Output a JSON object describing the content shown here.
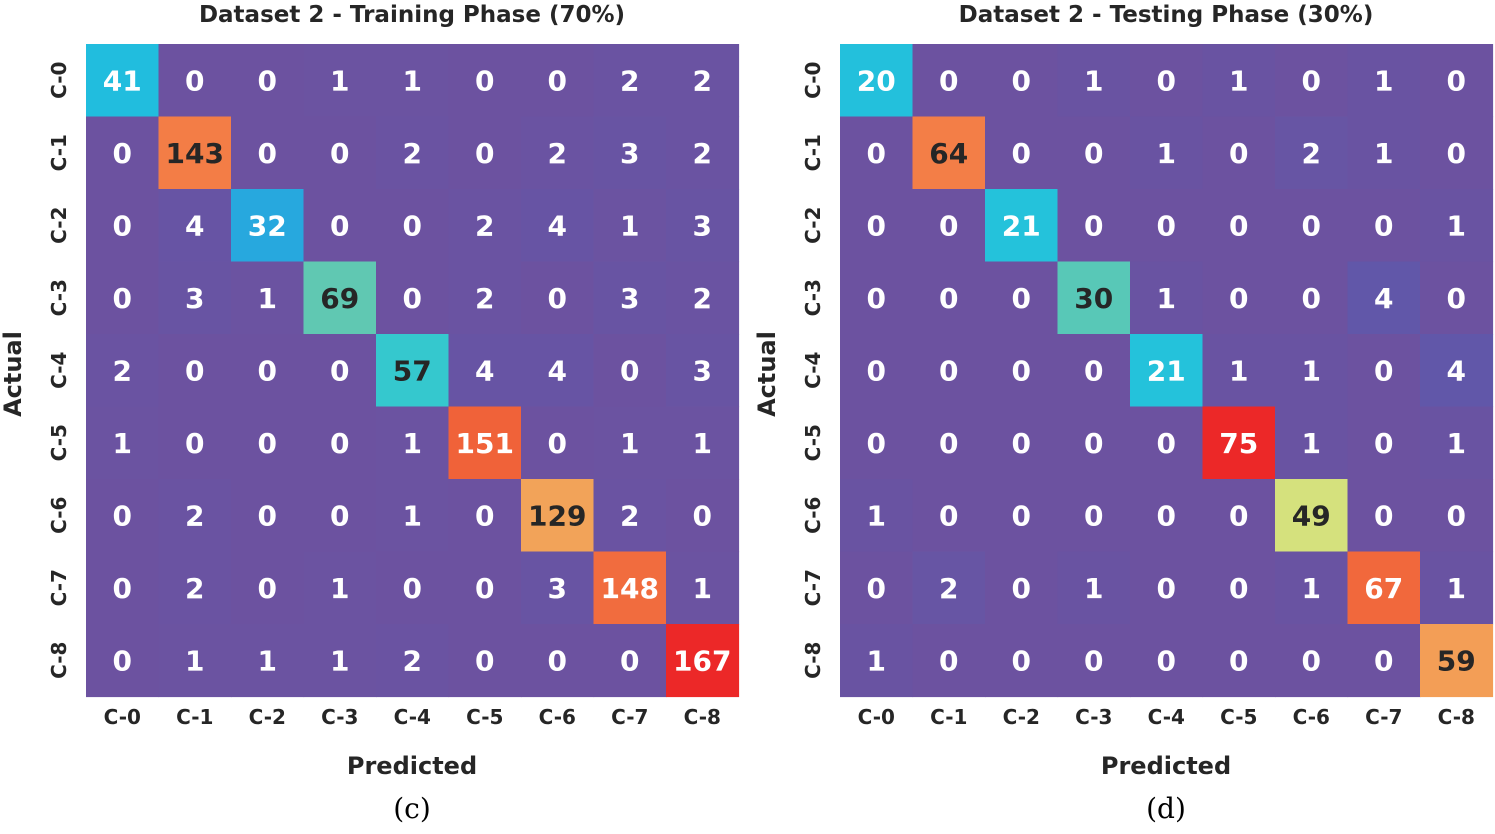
{
  "chart_data": [
    {
      "type": "heatmap",
      "title": "Dataset 2 - Training Phase (70%)",
      "xlabel": "Predicted",
      "ylabel": "Actual",
      "caption": "(c)",
      "x_categories": [
        "C-0",
        "C-1",
        "C-2",
        "C-3",
        "C-4",
        "C-5",
        "C-6",
        "C-7",
        "C-8"
      ],
      "y_categories": [
        "C-0",
        "C-1",
        "C-2",
        "C-3",
        "C-4",
        "C-5",
        "C-6",
        "C-7",
        "C-8"
      ],
      "matrix": [
        [
          41,
          0,
          0,
          1,
          1,
          0,
          0,
          2,
          2
        ],
        [
          0,
          143,
          0,
          0,
          2,
          0,
          2,
          3,
          2
        ],
        [
          0,
          4,
          32,
          0,
          0,
          2,
          4,
          1,
          3
        ],
        [
          0,
          3,
          1,
          69,
          0,
          2,
          0,
          3,
          2
        ],
        [
          2,
          0,
          0,
          0,
          57,
          4,
          4,
          0,
          3
        ],
        [
          1,
          0,
          0,
          0,
          1,
          151,
          0,
          1,
          1
        ],
        [
          0,
          2,
          0,
          0,
          1,
          0,
          129,
          2,
          0
        ],
        [
          0,
          2,
          0,
          1,
          0,
          0,
          3,
          148,
          1
        ],
        [
          0,
          1,
          1,
          1,
          2,
          0,
          0,
          0,
          167
        ]
      ]
    },
    {
      "type": "heatmap",
      "title": "Dataset 2 - Testing Phase (30%)",
      "xlabel": "Predicted",
      "ylabel": "Actual",
      "caption": "(d)",
      "x_categories": [
        "C-0",
        "C-1",
        "C-2",
        "C-3",
        "C-4",
        "C-5",
        "C-6",
        "C-7",
        "C-8"
      ],
      "y_categories": [
        "C-0",
        "C-1",
        "C-2",
        "C-3",
        "C-4",
        "C-5",
        "C-6",
        "C-7",
        "C-8"
      ],
      "matrix": [
        [
          20,
          0,
          0,
          1,
          0,
          1,
          0,
          1,
          0
        ],
        [
          0,
          64,
          0,
          0,
          1,
          0,
          2,
          1,
          0
        ],
        [
          0,
          0,
          21,
          0,
          0,
          0,
          0,
          0,
          1
        ],
        [
          0,
          0,
          0,
          30,
          1,
          0,
          0,
          4,
          0
        ],
        [
          0,
          0,
          0,
          0,
          21,
          1,
          1,
          0,
          4
        ],
        [
          0,
          0,
          0,
          0,
          0,
          75,
          1,
          0,
          1
        ],
        [
          1,
          0,
          0,
          0,
          0,
          0,
          49,
          0,
          0
        ],
        [
          0,
          2,
          0,
          1,
          0,
          0,
          1,
          67,
          1
        ],
        [
          1,
          0,
          0,
          0,
          0,
          0,
          0,
          0,
          59
        ]
      ]
    }
  ]
}
